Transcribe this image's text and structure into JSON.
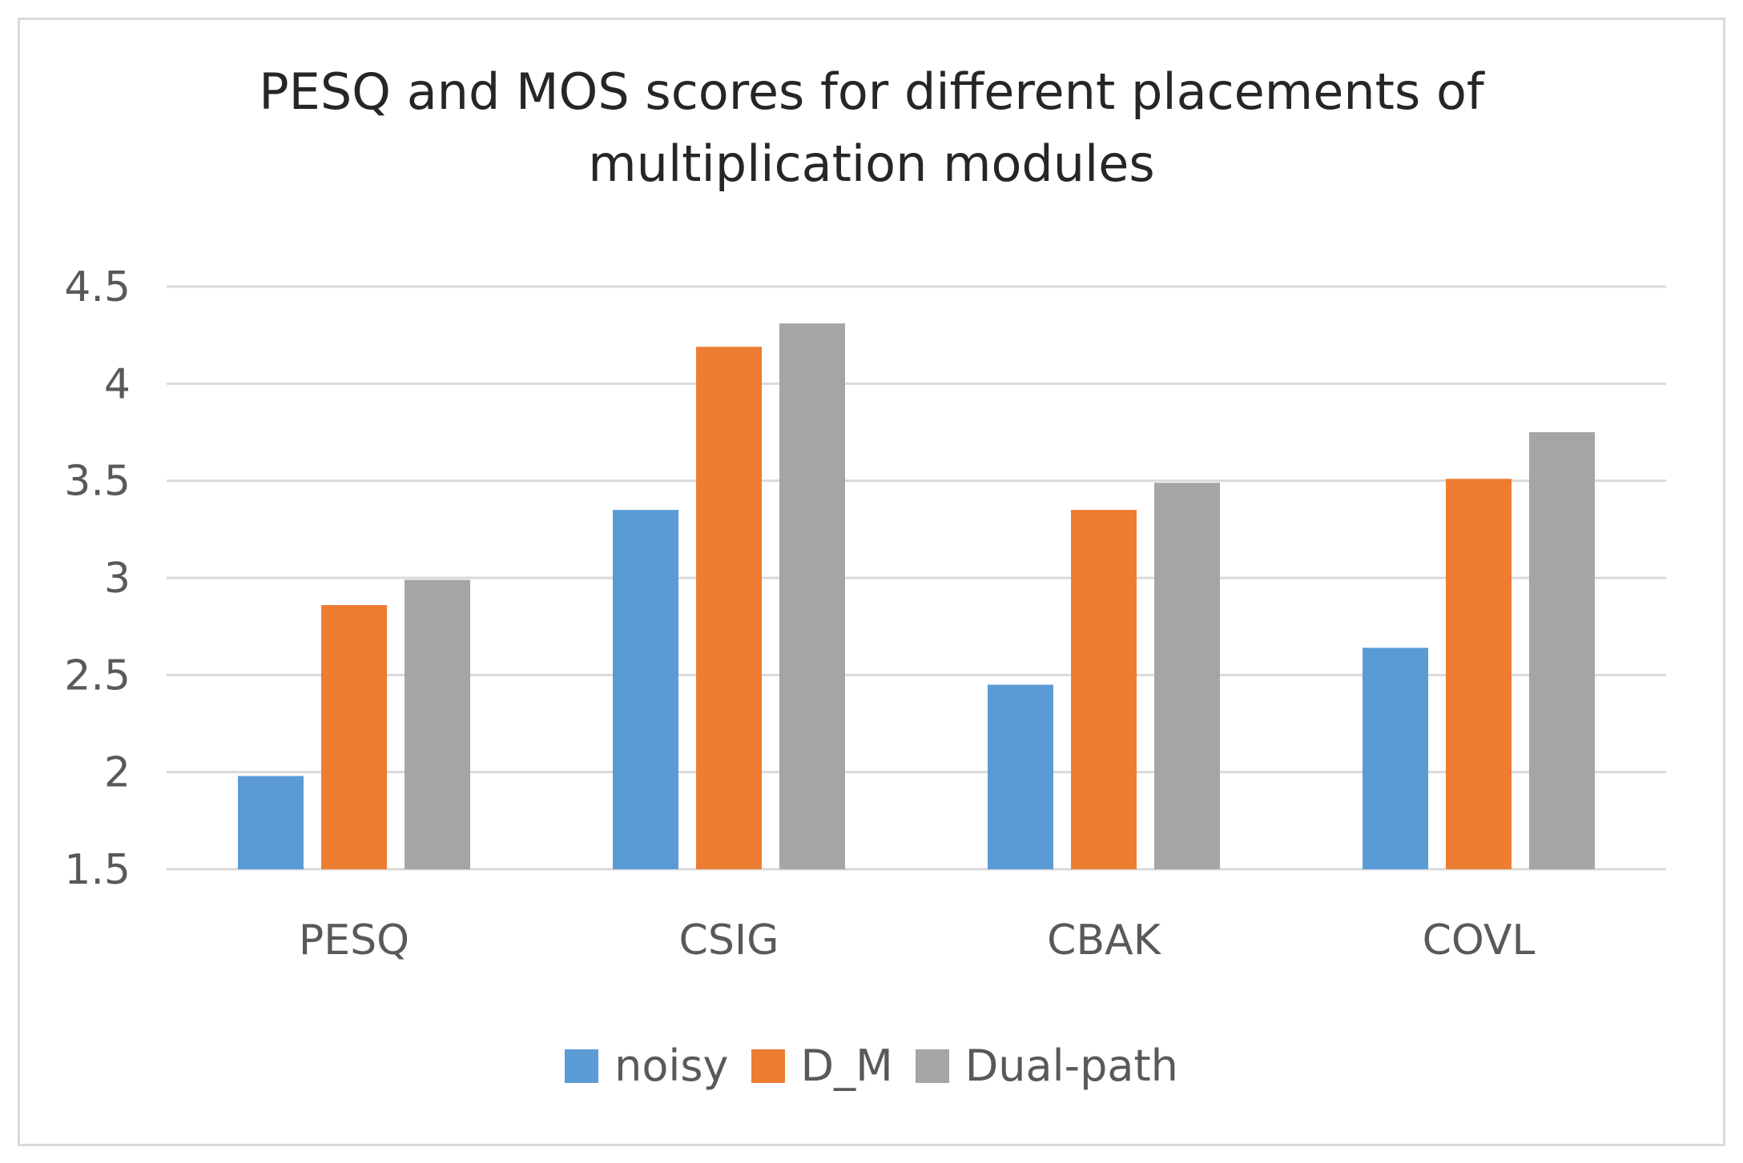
{
  "chart_data": {
    "type": "bar",
    "title": "PESQ and MOS scores for different placements of multiplication modules",
    "title_lines": [
      "PESQ and MOS scores for different placements of",
      "multiplication modules"
    ],
    "categories": [
      "PESQ",
      "CSIG",
      "CBAK",
      "COVL"
    ],
    "series": [
      {
        "name": "noisy",
        "color": "#5b9bd5",
        "values": [
          1.98,
          3.35,
          2.45,
          2.64
        ]
      },
      {
        "name": "D_M",
        "color": "#ed7d31",
        "values": [
          2.86,
          4.19,
          3.35,
          3.51
        ]
      },
      {
        "name": "Dual-path",
        "color": "#a5a5a5",
        "values": [
          2.99,
          4.31,
          3.49,
          3.75
        ]
      }
    ],
    "ylim": [
      1.5,
      4.5
    ],
    "yticks": [
      "1.5",
      "2",
      "2.5",
      "3",
      "3.5",
      "4",
      "4.5"
    ],
    "xlabel": "",
    "ylabel": "",
    "grid": true,
    "legend_position": "bottom"
  },
  "colors": {
    "grid": "#d9d9d9",
    "text": "#595959",
    "title": "#262626"
  }
}
